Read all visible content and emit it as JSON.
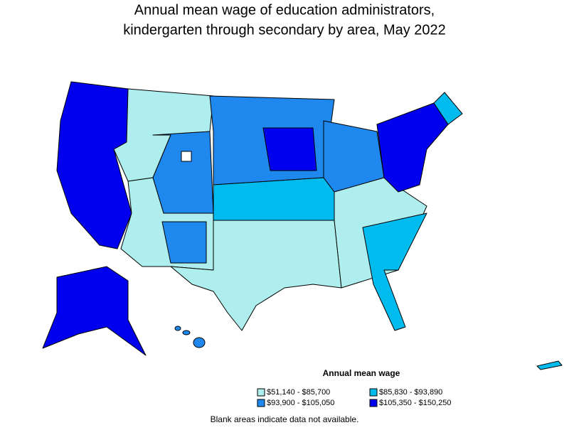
{
  "title": [
    "Annual mean wage of education administrators,",
    "kindergarten through secondary by area, May 2022"
  ],
  "legend": {
    "title": "Annual mean wage",
    "items": [
      {
        "label": "$51,140 - $85,700",
        "color": "#aeeeee"
      },
      {
        "label": "$85,830 - $93,890",
        "color": "#00bbee"
      },
      {
        "label": "$93,900 - $105,050",
        "color": "#1e88ee"
      },
      {
        "label": "$105,350 - $150,250",
        "color": "#0000ee"
      }
    ]
  },
  "note": "Blank areas indicate data not available."
}
